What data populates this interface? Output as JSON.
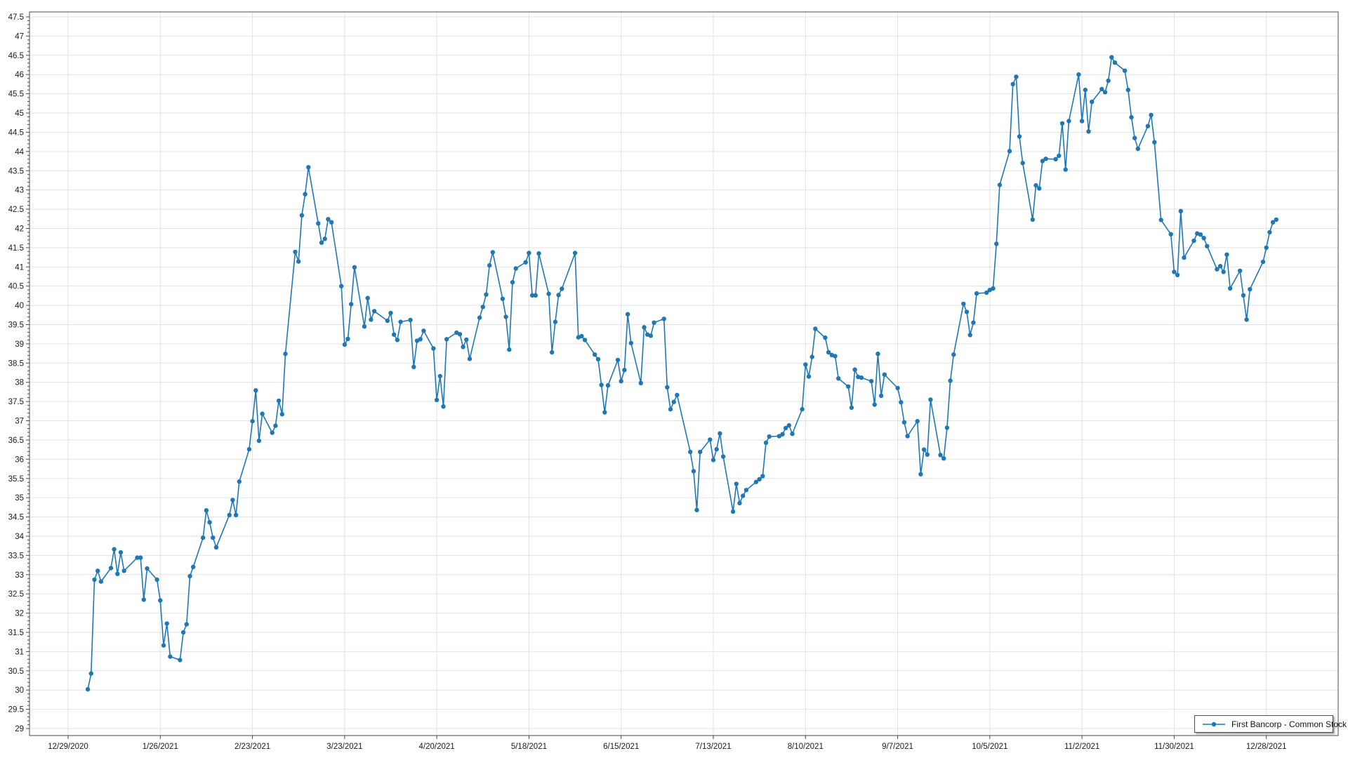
{
  "chart_data": {
    "type": "line",
    "title": "",
    "grid": true,
    "legend": {
      "position": "bottom-right",
      "label": "First Bancorp - Common Stock"
    },
    "x_axis": {
      "tick_labels": [
        "12/29/2020",
        "1/26/2021",
        "2/23/2021",
        "3/23/2021",
        "4/20/2021",
        "5/18/2021",
        "6/15/2021",
        "7/13/2021",
        "8/10/2021",
        "9/7/2021",
        "10/5/2021",
        "11/2/2021",
        "11/30/2021",
        "12/28/2021"
      ],
      "tick_interval_days": 28
    },
    "y_axis": {
      "min": 29,
      "max": 47.5,
      "step": 0.5,
      "minor_step": 0.1
    },
    "series": [
      {
        "name": "First Bancorp - Common Stock",
        "color": "#1f77b4",
        "points": [
          [
            "1/4/2021",
            30.02
          ],
          [
            "1/5/2021",
            30.43
          ],
          [
            "1/6/2021",
            32.87
          ],
          [
            "1/7/2021",
            33.1
          ],
          [
            "1/8/2021",
            32.82
          ],
          [
            "1/11/2021",
            33.17
          ],
          [
            "1/12/2021",
            33.66
          ],
          [
            "1/13/2021",
            33.02
          ],
          [
            "1/14/2021",
            33.58
          ],
          [
            "1/15/2021",
            33.1
          ],
          [
            "1/19/2021",
            33.44
          ],
          [
            "1/20/2021",
            33.44
          ],
          [
            "1/21/2021",
            32.35
          ],
          [
            "1/22/2021",
            33.16
          ],
          [
            "1/25/2021",
            32.87
          ],
          [
            "1/26/2021",
            32.33
          ],
          [
            "1/27/2021",
            31.16
          ],
          [
            "1/28/2021",
            31.73
          ],
          [
            "1/29/2021",
            30.87
          ],
          [
            "2/1/2021",
            30.78
          ],
          [
            "2/2/2021",
            31.5
          ],
          [
            "2/3/2021",
            31.71
          ],
          [
            "2/4/2021",
            32.96
          ],
          [
            "2/5/2021",
            33.2
          ],
          [
            "2/8/2021",
            33.96
          ],
          [
            "2/9/2021",
            34.67
          ],
          [
            "2/10/2021",
            34.36
          ],
          [
            "2/11/2021",
            33.96
          ],
          [
            "2/12/2021",
            33.71
          ],
          [
            "2/16/2021",
            34.55
          ],
          [
            "2/17/2021",
            34.94
          ],
          [
            "2/18/2021",
            34.55
          ],
          [
            "2/19/2021",
            35.42
          ],
          [
            "2/22/2021",
            36.26
          ],
          [
            "2/23/2021",
            36.99
          ],
          [
            "2/24/2021",
            37.79
          ],
          [
            "2/25/2021",
            36.48
          ],
          [
            "2/26/2021",
            37.18
          ],
          [
            "3/1/2021",
            36.69
          ],
          [
            "3/2/2021",
            36.87
          ],
          [
            "3/3/2021",
            37.52
          ],
          [
            "3/4/2021",
            37.17
          ],
          [
            "3/5/2021",
            38.74
          ],
          [
            "3/8/2021",
            41.39
          ],
          [
            "3/9/2021",
            41.14
          ],
          [
            "3/10/2021",
            42.34
          ],
          [
            "3/11/2021",
            42.89
          ],
          [
            "3/12/2021",
            43.59
          ],
          [
            "3/15/2021",
            42.13
          ],
          [
            "3/16/2021",
            41.63
          ],
          [
            "3/17/2021",
            41.73
          ],
          [
            "3/18/2021",
            42.24
          ],
          [
            "3/19/2021",
            42.16
          ],
          [
            "3/22/2021",
            40.5
          ],
          [
            "3/23/2021",
            38.98
          ],
          [
            "3/24/2021",
            39.13
          ],
          [
            "3/25/2021",
            40.03
          ],
          [
            "3/26/2021",
            40.99
          ],
          [
            "3/29/2021",
            39.45
          ],
          [
            "3/30/2021",
            40.19
          ],
          [
            "3/31/2021",
            39.63
          ],
          [
            "4/1/2021",
            39.85
          ],
          [
            "4/5/2021",
            39.6
          ],
          [
            "4/6/2021",
            39.8
          ],
          [
            "4/7/2021",
            39.24
          ],
          [
            "4/8/2021",
            39.1
          ],
          [
            "4/9/2021",
            39.57
          ],
          [
            "4/12/2021",
            39.62
          ],
          [
            "4/13/2021",
            38.4
          ],
          [
            "4/14/2021",
            39.08
          ],
          [
            "4/15/2021",
            39.12
          ],
          [
            "4/16/2021",
            39.34
          ],
          [
            "4/19/2021",
            38.88
          ],
          [
            "4/20/2021",
            37.54
          ],
          [
            "4/21/2021",
            38.16
          ],
          [
            "4/22/2021",
            37.37
          ],
          [
            "4/23/2021",
            39.12
          ],
          [
            "4/26/2021",
            39.29
          ],
          [
            "4/27/2021",
            39.25
          ],
          [
            "4/28/2021",
            38.92
          ],
          [
            "4/29/2021",
            39.11
          ],
          [
            "4/30/2021",
            38.61
          ],
          [
            "5/3/2021",
            39.68
          ],
          [
            "5/4/2021",
            39.96
          ],
          [
            "5/5/2021",
            40.28
          ],
          [
            "5/6/2021",
            41.04
          ],
          [
            "5/7/2021",
            41.38
          ],
          [
            "5/10/2021",
            40.17
          ],
          [
            "5/11/2021",
            39.7
          ],
          [
            "5/12/2021",
            38.85
          ],
          [
            "5/13/2021",
            40.6
          ],
          [
            "5/14/2021",
            40.96
          ],
          [
            "5/17/2021",
            41.12
          ],
          [
            "5/18/2021",
            41.36
          ],
          [
            "5/19/2021",
            40.26
          ],
          [
            "5/20/2021",
            40.26
          ],
          [
            "5/21/2021",
            41.35
          ],
          [
            "5/24/2021",
            40.3
          ],
          [
            "5/25/2021",
            38.78
          ],
          [
            "5/26/2021",
            39.57
          ],
          [
            "5/27/2021",
            40.27
          ],
          [
            "5/28/2021",
            40.43
          ],
          [
            "6/1/2021",
            41.36
          ],
          [
            "6/2/2021",
            39.17
          ],
          [
            "6/3/2021",
            39.2
          ],
          [
            "6/4/2021",
            39.1
          ],
          [
            "6/7/2021",
            38.72
          ],
          [
            "6/8/2021",
            38.6
          ],
          [
            "6/9/2021",
            37.93
          ],
          [
            "6/10/2021",
            37.22
          ],
          [
            "6/11/2021",
            37.92
          ],
          [
            "6/14/2021",
            38.58
          ],
          [
            "6/15/2021",
            38.03
          ],
          [
            "6/16/2021",
            38.32
          ],
          [
            "6/17/2021",
            39.77
          ],
          [
            "6/18/2021",
            39.02
          ],
          [
            "6/21/2021",
            37.98
          ],
          [
            "6/22/2021",
            39.43
          ],
          [
            "6/23/2021",
            39.24
          ],
          [
            "6/24/2021",
            39.21
          ],
          [
            "6/25/2021",
            39.55
          ],
          [
            "6/28/2021",
            39.65
          ],
          [
            "6/29/2021",
            37.87
          ],
          [
            "6/30/2021",
            37.3
          ],
          [
            "7/1/2021",
            37.49
          ],
          [
            "7/2/2021",
            37.67
          ],
          [
            "7/6/2021",
            36.19
          ],
          [
            "7/7/2021",
            35.69
          ],
          [
            "7/8/2021",
            34.68
          ],
          [
            "7/9/2021",
            36.19
          ],
          [
            "7/12/2021",
            36.51
          ],
          [
            "7/13/2021",
            35.98
          ],
          [
            "7/14/2021",
            36.26
          ],
          [
            "7/15/2021",
            36.67
          ],
          [
            "7/16/2021",
            36.07
          ],
          [
            "7/19/2021",
            34.64
          ],
          [
            "7/20/2021",
            35.36
          ],
          [
            "7/21/2021",
            34.86
          ],
          [
            "7/22/2021",
            35.05
          ],
          [
            "7/23/2021",
            35.2
          ],
          [
            "7/26/2021",
            35.41
          ],
          [
            "7/27/2021",
            35.48
          ],
          [
            "7/28/2021",
            35.56
          ],
          [
            "7/29/2021",
            36.43
          ],
          [
            "7/30/2021",
            36.59
          ],
          [
            "8/2/2021",
            36.6
          ],
          [
            "8/3/2021",
            36.65
          ],
          [
            "8/4/2021",
            36.81
          ],
          [
            "8/5/2021",
            36.88
          ],
          [
            "8/6/2021",
            36.66
          ],
          [
            "8/9/2021",
            37.3
          ],
          [
            "8/10/2021",
            38.46
          ],
          [
            "8/11/2021",
            38.15
          ],
          [
            "8/12/2021",
            38.66
          ],
          [
            "8/13/2021",
            39.39
          ],
          [
            "8/16/2021",
            39.16
          ],
          [
            "8/17/2021",
            38.78
          ],
          [
            "8/18/2021",
            38.71
          ],
          [
            "8/19/2021",
            38.68
          ],
          [
            "8/20/2021",
            38.1
          ],
          [
            "8/23/2021",
            37.89
          ],
          [
            "8/24/2021",
            37.34
          ],
          [
            "8/25/2021",
            38.33
          ],
          [
            "8/26/2021",
            38.14
          ],
          [
            "8/27/2021",
            38.12
          ],
          [
            "8/30/2021",
            38.03
          ],
          [
            "8/31/2021",
            37.42
          ],
          [
            "9/1/2021",
            38.74
          ],
          [
            "9/2/2021",
            37.65
          ],
          [
            "9/3/2021",
            38.2
          ],
          [
            "9/7/2021",
            37.85
          ],
          [
            "9/8/2021",
            37.48
          ],
          [
            "9/9/2021",
            36.96
          ],
          [
            "9/10/2021",
            36.6
          ],
          [
            "9/13/2021",
            36.99
          ],
          [
            "9/14/2021",
            35.61
          ],
          [
            "9/15/2021",
            36.25
          ],
          [
            "9/16/2021",
            36.12
          ],
          [
            "9/17/2021",
            37.55
          ],
          [
            "9/20/2021",
            36.11
          ],
          [
            "9/21/2021",
            36.02
          ],
          [
            "9/22/2021",
            36.82
          ],
          [
            "9/23/2021",
            38.04
          ],
          [
            "9/24/2021",
            38.72
          ],
          [
            "9/27/2021",
            40.04
          ],
          [
            "9/28/2021",
            39.83
          ],
          [
            "9/29/2021",
            39.23
          ],
          [
            "9/30/2021",
            39.55
          ],
          [
            "10/1/2021",
            40.31
          ],
          [
            "10/4/2021",
            40.33
          ],
          [
            "10/5/2021",
            40.4
          ],
          [
            "10/6/2021",
            40.44
          ],
          [
            "10/7/2021",
            41.6
          ],
          [
            "10/8/2021",
            43.13
          ],
          [
            "10/11/2021",
            44.01
          ],
          [
            "10/12/2021",
            45.75
          ],
          [
            "10/13/2021",
            45.94
          ],
          [
            "10/14/2021",
            44.39
          ],
          [
            "10/15/2021",
            43.7
          ],
          [
            "10/18/2021",
            42.23
          ],
          [
            "10/19/2021",
            43.12
          ],
          [
            "10/20/2021",
            43.04
          ],
          [
            "10/21/2021",
            43.75
          ],
          [
            "10/22/2021",
            43.81
          ],
          [
            "10/25/2021",
            43.8
          ],
          [
            "10/26/2021",
            43.89
          ],
          [
            "10/27/2021",
            44.73
          ],
          [
            "10/28/2021",
            43.53
          ],
          [
            "10/29/2021",
            44.79
          ],
          [
            "11/1/2021",
            46.0
          ],
          [
            "11/2/2021",
            44.79
          ],
          [
            "11/3/2021",
            45.6
          ],
          [
            "11/4/2021",
            44.52
          ],
          [
            "11/5/2021",
            45.29
          ],
          [
            "11/8/2021",
            45.62
          ],
          [
            "11/9/2021",
            45.54
          ],
          [
            "11/10/2021",
            45.84
          ],
          [
            "11/11/2021",
            46.45
          ],
          [
            "11/12/2021",
            46.31
          ],
          [
            "11/15/2021",
            46.1
          ],
          [
            "11/16/2021",
            45.6
          ],
          [
            "11/17/2021",
            44.89
          ],
          [
            "11/18/2021",
            44.35
          ],
          [
            "11/19/2021",
            44.07
          ],
          [
            "11/22/2021",
            44.66
          ],
          [
            "11/23/2021",
            44.95
          ],
          [
            "11/24/2021",
            44.24
          ],
          [
            "11/26/2021",
            42.22
          ],
          [
            "11/29/2021",
            41.85
          ],
          [
            "11/30/2021",
            40.87
          ],
          [
            "12/1/2021",
            40.79
          ],
          [
            "12/2/2021",
            42.45
          ],
          [
            "12/3/2021",
            41.24
          ],
          [
            "12/6/2021",
            41.68
          ],
          [
            "12/7/2021",
            41.87
          ],
          [
            "12/8/2021",
            41.84
          ],
          [
            "12/9/2021",
            41.75
          ],
          [
            "12/10/2021",
            41.54
          ],
          [
            "12/13/2021",
            40.94
          ],
          [
            "12/14/2021",
            41.02
          ],
          [
            "12/15/2021",
            40.87
          ],
          [
            "12/16/2021",
            41.32
          ],
          [
            "12/17/2021",
            40.44
          ],
          [
            "12/20/2021",
            40.9
          ],
          [
            "12/21/2021",
            40.26
          ],
          [
            "12/22/2021",
            39.63
          ],
          [
            "12/23/2021",
            40.42
          ],
          [
            "12/27/2021",
            41.13
          ],
          [
            "12/28/2021",
            41.5
          ],
          [
            "12/29/2021",
            41.9
          ],
          [
            "12/30/2021",
            42.16
          ],
          [
            "12/31/2021",
            42.23
          ]
        ]
      }
    ]
  },
  "colors": {
    "line": "#1f77b4",
    "grid": "#e2e2e2",
    "axis": "#4a4a4a",
    "text": "#191919",
    "background": "#ffffff",
    "legend_border": "#4d4d4d"
  }
}
